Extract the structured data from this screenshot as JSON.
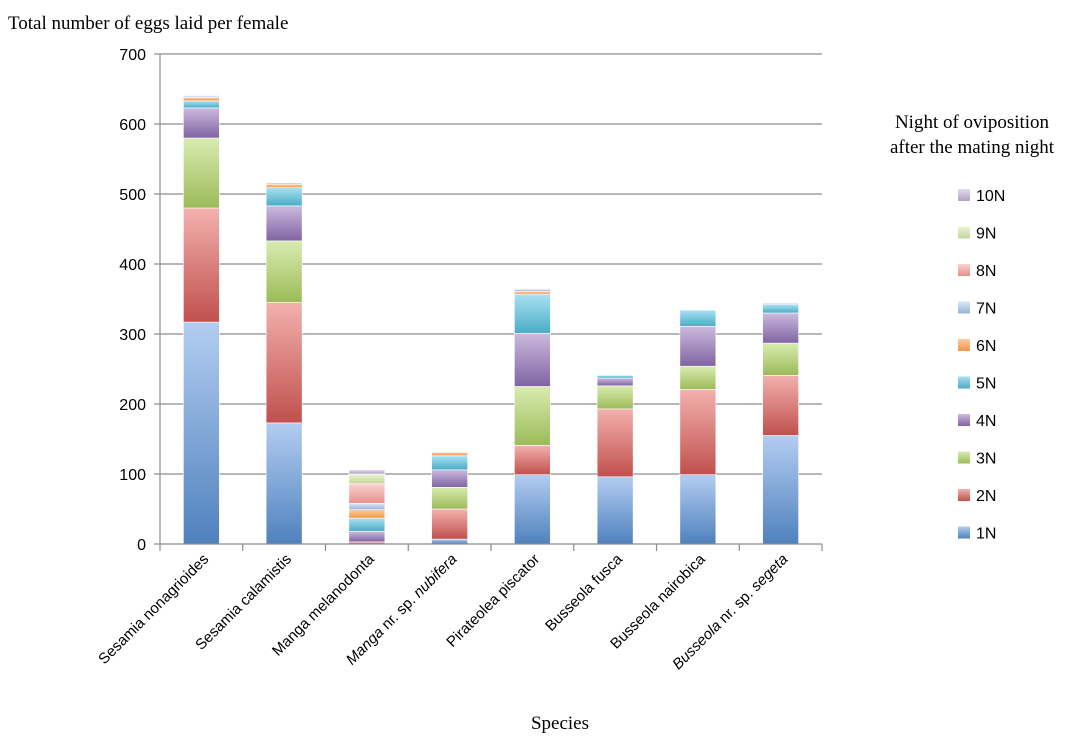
{
  "chart_data": {
    "type": "bar",
    "stacked": true,
    "title": "Total number of eggs laid per female",
    "xlabel": "Species",
    "ylabel": "",
    "ylim": [
      0,
      700
    ],
    "yticks": [
      0,
      100,
      200,
      300,
      400,
      500,
      600,
      700
    ],
    "grid": true,
    "legend": {
      "title_lines": [
        "Night of oviposition",
        "after the mating night"
      ],
      "placement": "right"
    },
    "categories": [
      {
        "label": "Sesamia nonagrioides",
        "italic_part": "",
        "rest": ""
      },
      {
        "label": "Sesamia calamistis",
        "italic_part": "",
        "rest": ""
      },
      {
        "label": "Manga melanodonta",
        "italic_part": "",
        "rest": ""
      },
      {
        "label": "",
        "italic_part": "Manga",
        "rest": " nr. sp. ",
        "italic_tail": "nubifera"
      },
      {
        "label": "Pirateolea piscator",
        "italic_part": "",
        "rest": ""
      },
      {
        "label": "Busseola fusca",
        "italic_part": "",
        "rest": ""
      },
      {
        "label": "Busseola nairobica",
        "italic_part": "",
        "rest": ""
      },
      {
        "label": "",
        "italic_part": "Busseola",
        "rest": " nr. sp. ",
        "italic_tail": "segeta"
      }
    ],
    "series": [
      {
        "name": "1N",
        "color": "#4f81bd",
        "light": "#b3cdf1",
        "values": [
          317,
          173,
          0,
          7,
          99,
          96,
          99,
          155
        ]
      },
      {
        "name": "2N",
        "color": "#c0504d",
        "light": "#f3b1ae",
        "values": [
          163,
          172,
          3,
          43,
          42,
          97,
          122,
          86
        ]
      },
      {
        "name": "3N",
        "color": "#9bbb59",
        "light": "#d9ecb0",
        "values": [
          100,
          88,
          0,
          31,
          84,
          33,
          33,
          46
        ]
      },
      {
        "name": "4N",
        "color": "#8064a2",
        "light": "#cbbade",
        "values": [
          43,
          50,
          15,
          25,
          76,
          11,
          57,
          43
        ]
      },
      {
        "name": "5N",
        "color": "#4bacc6",
        "light": "#a8e2f2",
        "values": [
          10,
          26,
          19,
          20,
          56,
          4,
          23,
          12
        ]
      },
      {
        "name": "6N",
        "color": "#f79646",
        "light": "#fccca0",
        "values": [
          5,
          5,
          12,
          5,
          4,
          0,
          0,
          0
        ]
      },
      {
        "name": "7N",
        "color": "#95b3d7",
        "light": "#dbe7f5",
        "values": [
          2,
          2,
          9,
          1,
          3,
          1,
          1,
          2
        ]
      },
      {
        "name": "8N",
        "color": "#e6908d",
        "light": "#fad2d0",
        "values": [
          1,
          1,
          28,
          0,
          1,
          0,
          0,
          0
        ]
      },
      {
        "name": "9N",
        "color": "#c3d69b",
        "light": "#eaf3d4",
        "values": [
          1,
          1,
          14,
          0,
          0,
          0,
          0,
          0
        ]
      },
      {
        "name": "10N",
        "color": "#b2a1c7",
        "light": "#e4dcee",
        "values": [
          1,
          0,
          6,
          0,
          0,
          0,
          0,
          0
        ]
      }
    ]
  }
}
